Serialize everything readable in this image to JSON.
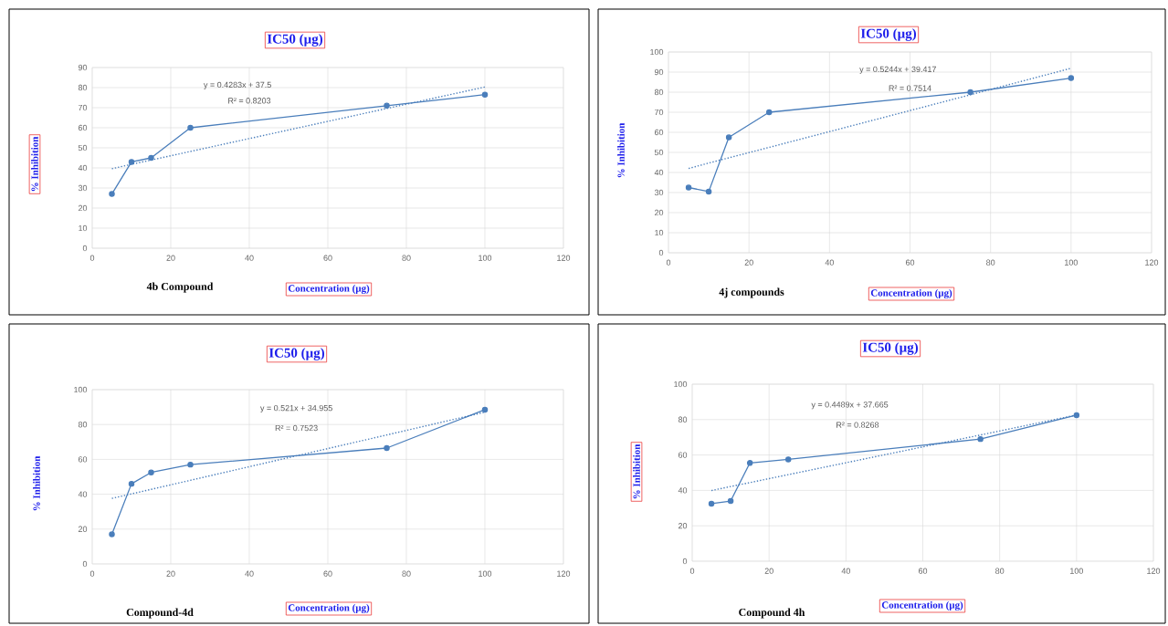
{
  "chart_data": [
    {
      "type": "line",
      "title": "IC50 (µg)",
      "xlabel": "Concentration (µg)",
      "ylabel": "% Inhibition",
      "x": [
        5,
        10,
        15,
        25,
        75,
        100
      ],
      "marker": "circle",
      "grid": true,
      "xlim": [
        0,
        120
      ],
      "ylim": [
        0,
        90
      ],
      "xticks": [
        0,
        20,
        40,
        60,
        80,
        100,
        120
      ],
      "yticks": [
        0,
        10,
        20,
        30,
        40,
        50,
        60,
        70,
        80,
        90
      ],
      "series": [
        {
          "color": "#4a7ebb",
          "values": [
            27,
            43,
            45,
            60,
            71,
            76.5
          ]
        },
        {
          "type": "line",
          "color": "#4a7ebb",
          "values": [
            39.6,
            41.8,
            43.9,
            48.2,
            69.6,
            80.3
          ],
          "line_style": "dotted",
          "marker": "none"
        }
      ],
      "annotations": [
        "y = 0.4283x + 37.5",
        "R² = 0.8203",
        "4b Compound"
      ]
    },
    {
      "type": "line",
      "title": "IC50 (µg)",
      "xlabel": "Concentration (µg)",
      "ylabel": "% Inhibition",
      "x": [
        5,
        10,
        15,
        25,
        75,
        100
      ],
      "marker": "circle",
      "grid": true,
      "xlim": [
        0,
        120
      ],
      "ylim": [
        0,
        100
      ],
      "xticks": [
        0,
        20,
        40,
        60,
        80,
        100,
        120
      ],
      "yticks": [
        0,
        10,
        20,
        30,
        40,
        50,
        60,
        70,
        80,
        90,
        100
      ],
      "series": [
        {
          "color": "#4a7ebb",
          "values": [
            32.5,
            30.5,
            57.5,
            70,
            80,
            87
          ]
        },
        {
          "type": "line",
          "color": "#4a7ebb",
          "values": [
            42.0,
            44.7,
            47.3,
            52.5,
            78.7,
            91.9
          ],
          "line_style": "dotted",
          "marker": "none"
        }
      ],
      "annotations": [
        "y = 0.5244x + 39.417",
        "R² = 0.7514",
        "4j compounds"
      ]
    },
    {
      "type": "line",
      "title": "IC50 (µg)",
      "xlabel": "Concentration (µg)",
      "ylabel": "% Inhibition",
      "x": [
        5,
        10,
        15,
        25,
        75,
        100
      ],
      "marker": "circle",
      "grid": true,
      "xlim": [
        0,
        120
      ],
      "ylim": [
        0,
        100
      ],
      "xticks": [
        0,
        20,
        40,
        60,
        80,
        100,
        120
      ],
      "yticks": [
        0,
        20,
        40,
        60,
        80,
        100
      ],
      "series": [
        {
          "color": "#4a7ebb",
          "values": [
            17,
            46,
            52.5,
            57,
            66.5,
            88.5
          ]
        },
        {
          "type": "line",
          "color": "#4a7ebb",
          "values": [
            37.6,
            40.2,
            42.8,
            48.0,
            74.0,
            87.1
          ],
          "line_style": "dotted",
          "marker": "none"
        }
      ],
      "annotations": [
        "y = 0.521x + 34.955",
        "R² = 0.7523",
        "Compound-4d"
      ]
    },
    {
      "type": "line",
      "title": "IC50 (µg)",
      "xlabel": "Concentration  (µg)",
      "ylabel": "% Inhibition",
      "x": [
        5,
        10,
        15,
        25,
        75,
        100
      ],
      "marker": "circle",
      "grid": true,
      "xlim": [
        0,
        120
      ],
      "ylim": [
        0,
        100
      ],
      "xticks": [
        0,
        20,
        40,
        60,
        80,
        100,
        120
      ],
      "yticks": [
        0,
        20,
        40,
        60,
        80,
        100
      ],
      "series": [
        {
          "color": "#4a7ebb",
          "values": [
            32.5,
            34,
            55.5,
            57.5,
            69,
            82.5
          ]
        },
        {
          "type": "line",
          "color": "#4a7ebb",
          "values": [
            39.9,
            42.2,
            44.4,
            48.9,
            71.3,
            82.6
          ],
          "line_style": "dotted",
          "marker": "none"
        }
      ],
      "annotations": [
        "y = 0.4489x + 37.665",
        "R² = 0.8268",
        "Compound 4h"
      ]
    }
  ]
}
